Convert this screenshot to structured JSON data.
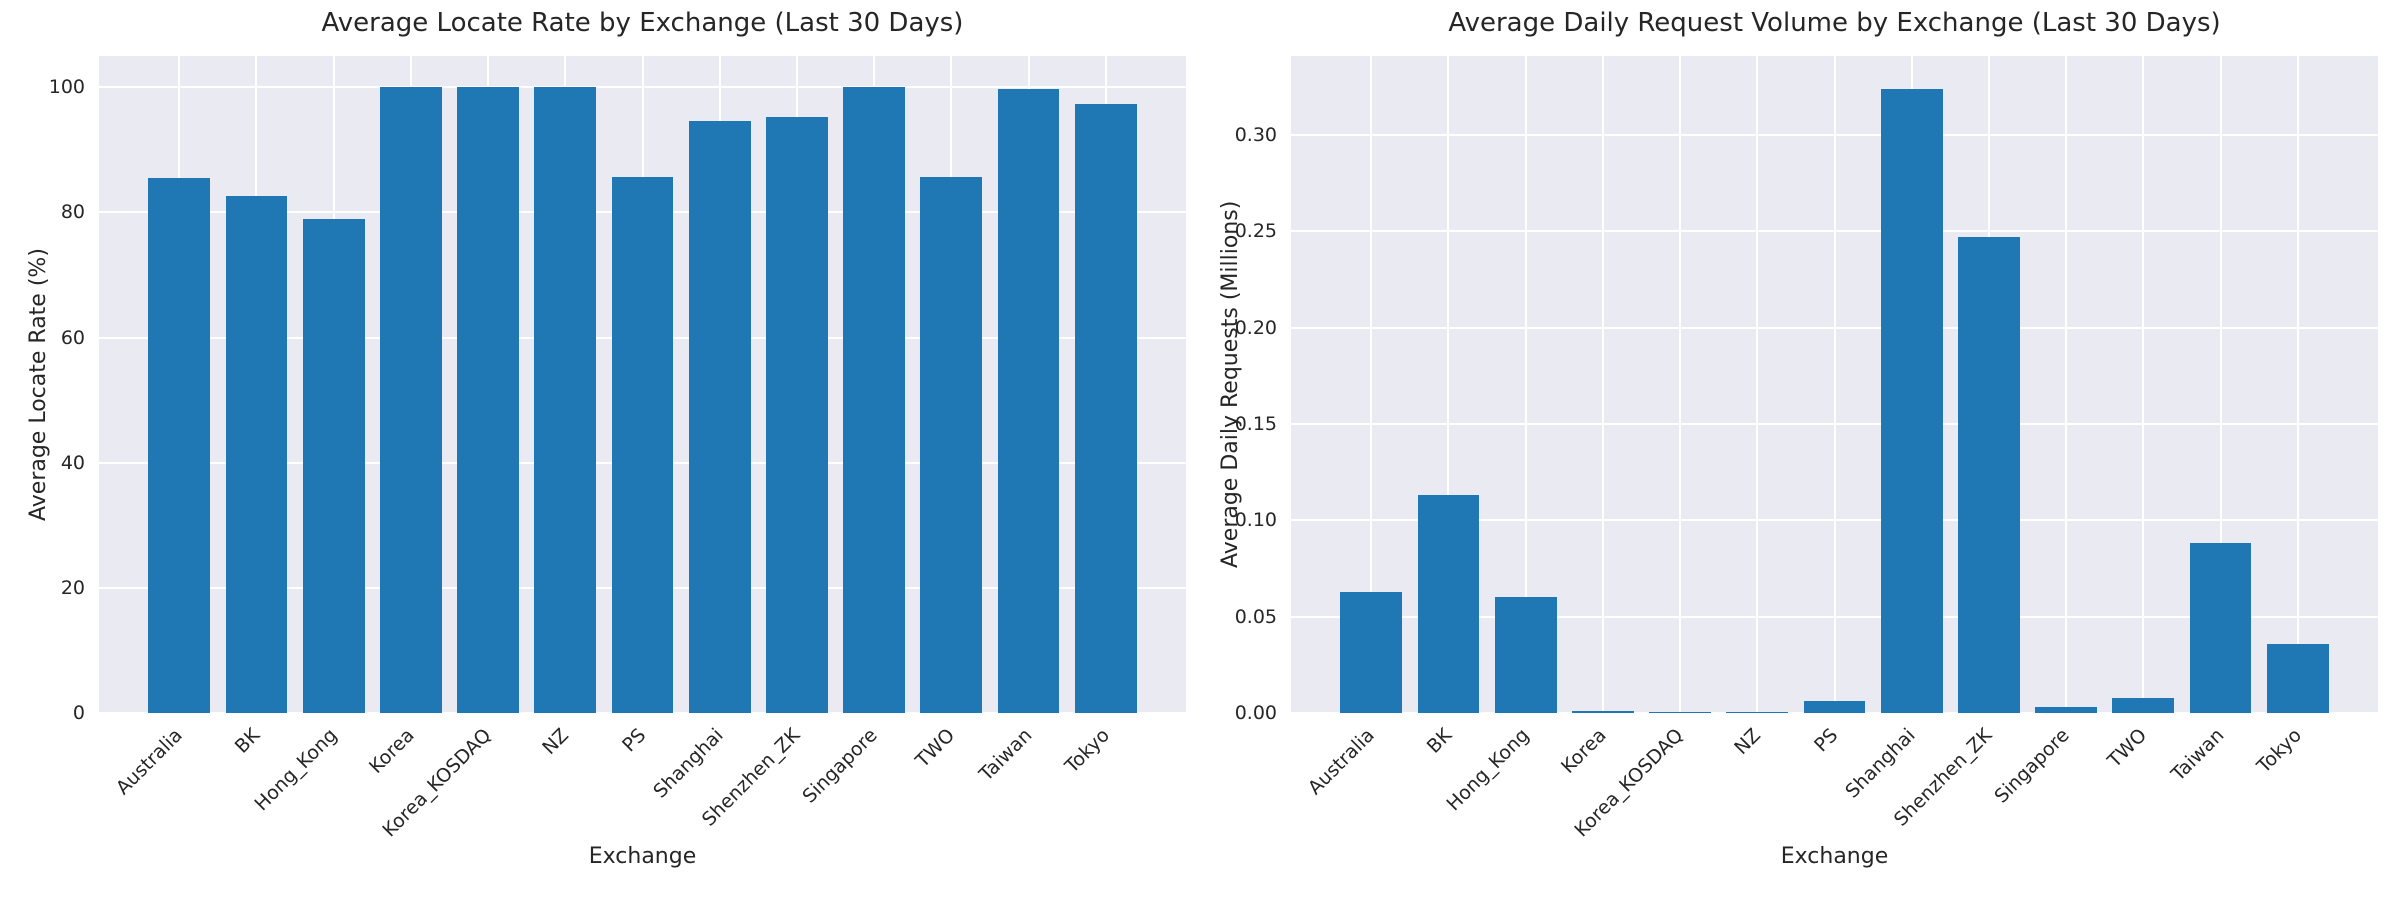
{
  "figure": {
    "background": "#ffffff",
    "axes_background": "#eaeaf2",
    "grid_color": "#ffffff",
    "bar_color": "#1f77b4",
    "text_color": "#262626"
  },
  "chart_data": [
    {
      "type": "bar",
      "title": "Average Locate Rate by Exchange (Last 30 Days)",
      "xlabel": "Exchange",
      "ylabel": "Average Locate Rate (%)",
      "categories": [
        "Australia",
        "BK",
        "Hong_Kong",
        "Korea",
        "Korea_KOSDAQ",
        "NZ",
        "PS",
        "Shanghai",
        "Shenzhen_ZK",
        "Singapore",
        "TWO",
        "Taiwan",
        "Tokyo"
      ],
      "values": [
        85.5,
        82.7,
        79.0,
        100,
        100,
        100,
        85.7,
        94.6,
        95.3,
        100,
        85.7,
        99.8,
        97.4
      ],
      "yticks": [
        0,
        20,
        40,
        60,
        80,
        100
      ],
      "ytick_labels": [
        "0",
        "20",
        "40",
        "60",
        "80",
        "100"
      ],
      "ylim": [
        0,
        105
      ],
      "grid": true,
      "legend": null,
      "bar_color": "#1f77b4"
    },
    {
      "type": "bar",
      "title": "Average Daily Request Volume by Exchange (Last 30 Days)",
      "xlabel": "Exchange",
      "ylabel": "Average Daily Requests (Millions)",
      "categories": [
        "Australia",
        "BK",
        "Hong_Kong",
        "Korea",
        "Korea_KOSDAQ",
        "NZ",
        "PS",
        "Shanghai",
        "Shenzhen_ZK",
        "Singapore",
        "TWO",
        "Taiwan",
        "Tokyo"
      ],
      "values": [
        0.063,
        0.113,
        0.06,
        0.001,
        0.0004,
        0.0006,
        0.006,
        0.324,
        0.247,
        0.003,
        0.008,
        0.088,
        0.036
      ],
      "yticks": [
        0.0,
        0.05,
        0.1,
        0.15,
        0.2,
        0.25,
        0.3
      ],
      "ytick_labels": [
        "0.00",
        "0.05",
        "0.10",
        "0.15",
        "0.20",
        "0.25",
        "0.30"
      ],
      "ylim": [
        0,
        0.341
      ],
      "grid": true,
      "legend": null,
      "bar_color": "#1f77b4"
    }
  ]
}
